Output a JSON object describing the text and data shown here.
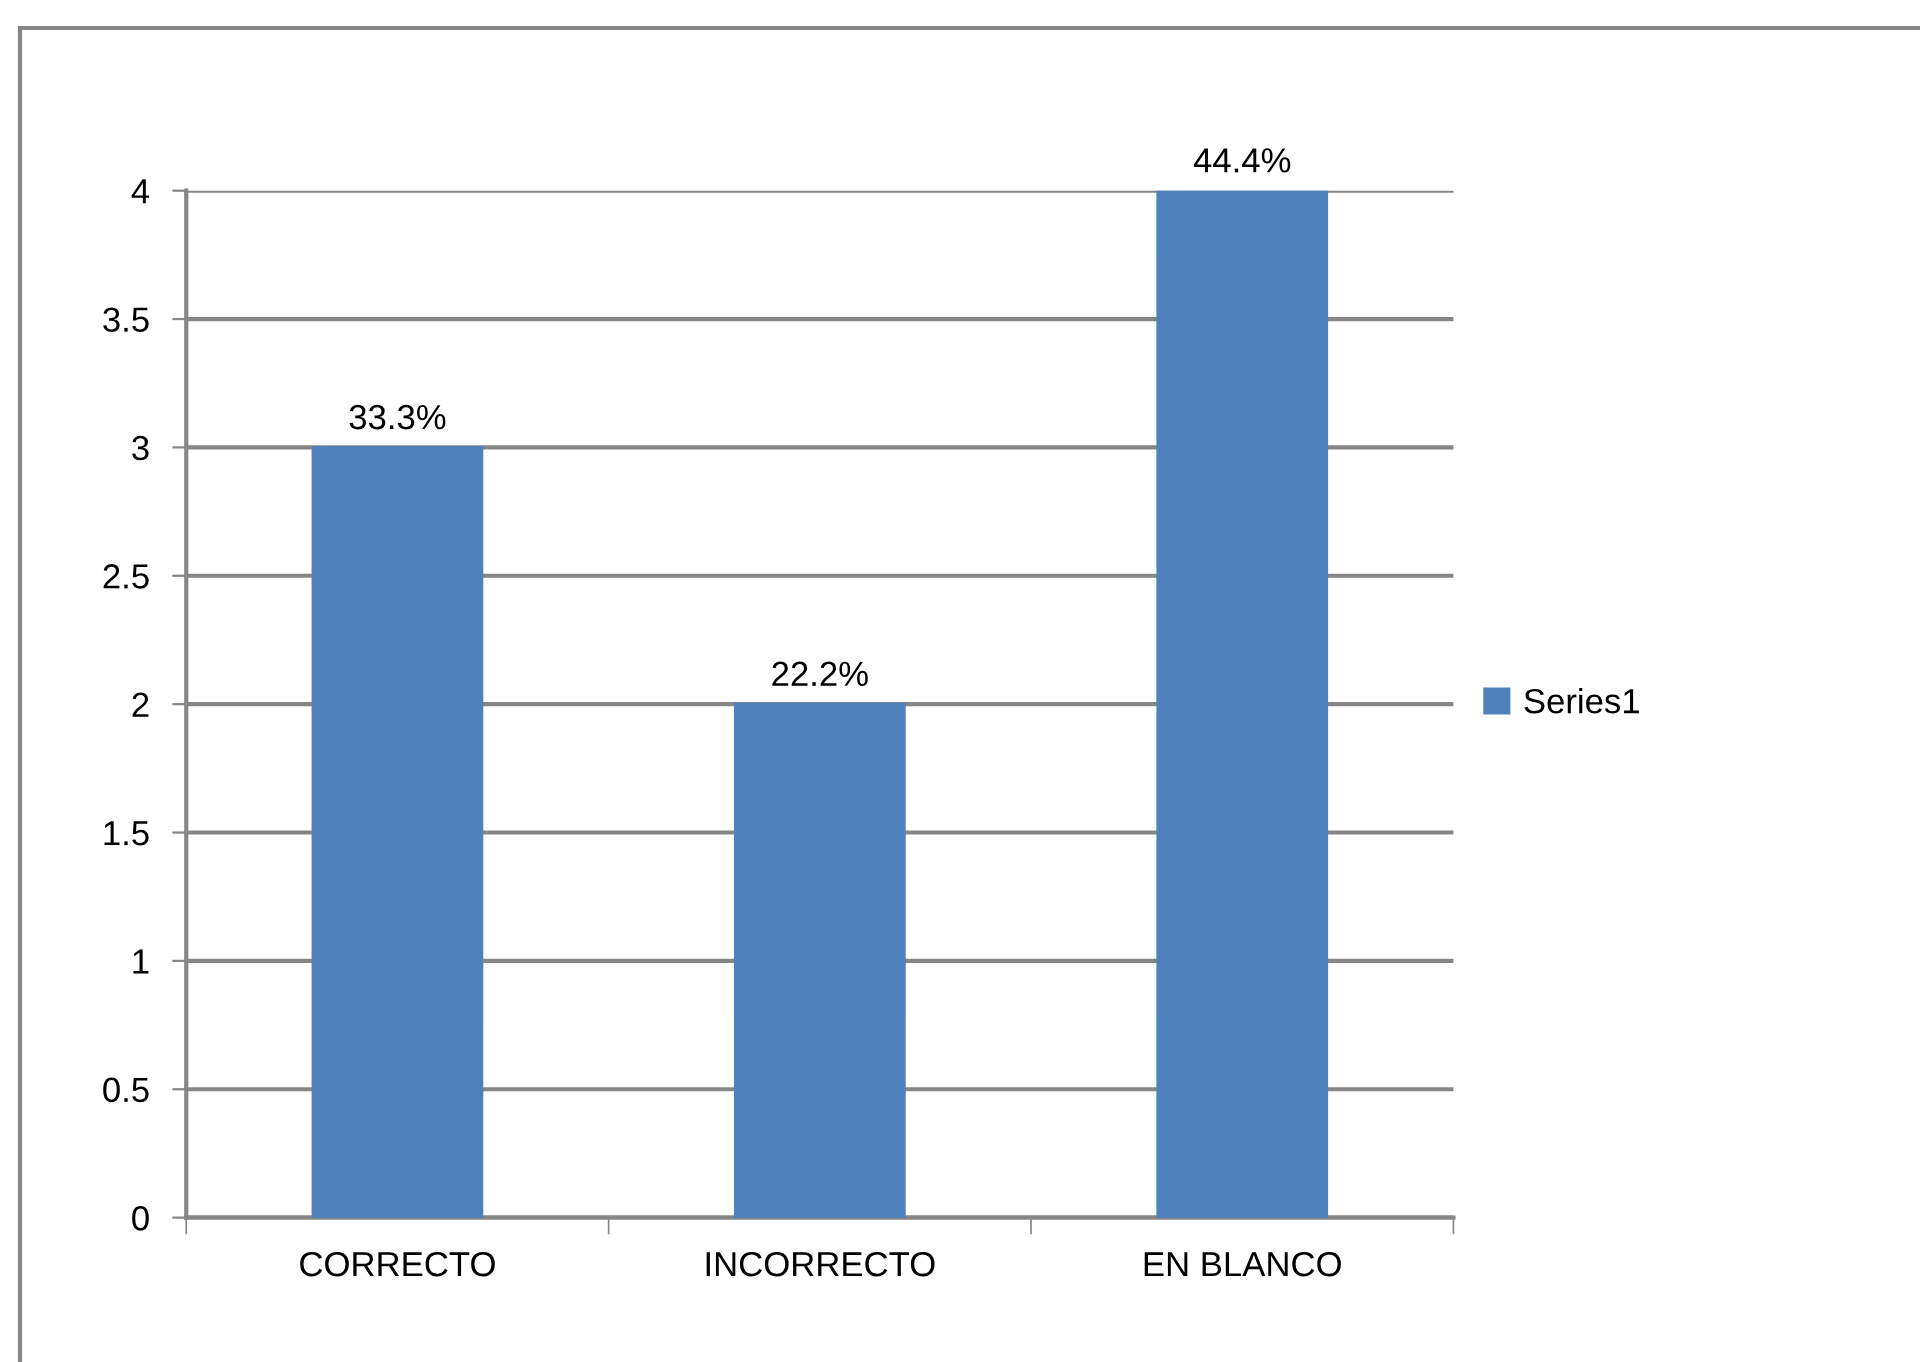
{
  "chart_data": {
    "type": "bar",
    "categories": [
      "CORRECTO",
      "INCORRECTO",
      "EN BLANCO"
    ],
    "series": [
      {
        "name": "Series1",
        "color": "#4f81bd",
        "values": [
          3,
          2,
          4
        ]
      }
    ],
    "annotations": [
      {
        "text": "33.3%",
        "x": "CORRECTO",
        "y": 3
      },
      {
        "text": "22.2%",
        "x": "INCORRECTO",
        "y": 2
      },
      {
        "text": "44.4%",
        "x": "EN BLANCO",
        "y": 4
      }
    ],
    "ylim": [
      0,
      4
    ],
    "yticks": [
      0,
      0.5,
      1,
      1.5,
      2,
      2.5,
      3,
      3.5,
      4
    ],
    "grid": "y",
    "legend": "right"
  }
}
